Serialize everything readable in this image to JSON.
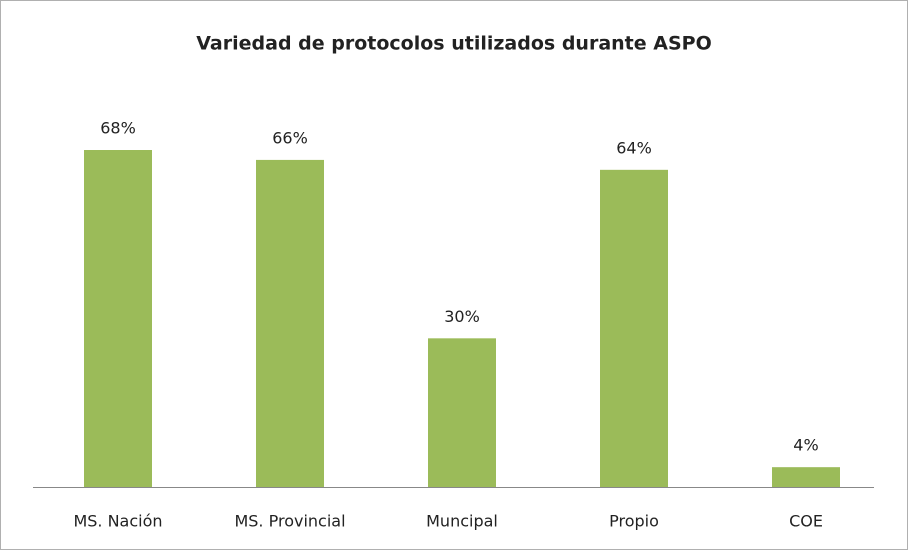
{
  "chart_data": {
    "type": "bar",
    "title": "Variedad de protocolos utilizados durante ASPO",
    "categories": [
      "MS. Nación",
      "MS. Provincial",
      "Muncipal",
      "Propio",
      "COE"
    ],
    "values": [
      68,
      66,
      30,
      64,
      4
    ],
    "value_labels": [
      "68%",
      "66%",
      "30%",
      "64%",
      "4%"
    ],
    "color": "#9bbb59"
  }
}
